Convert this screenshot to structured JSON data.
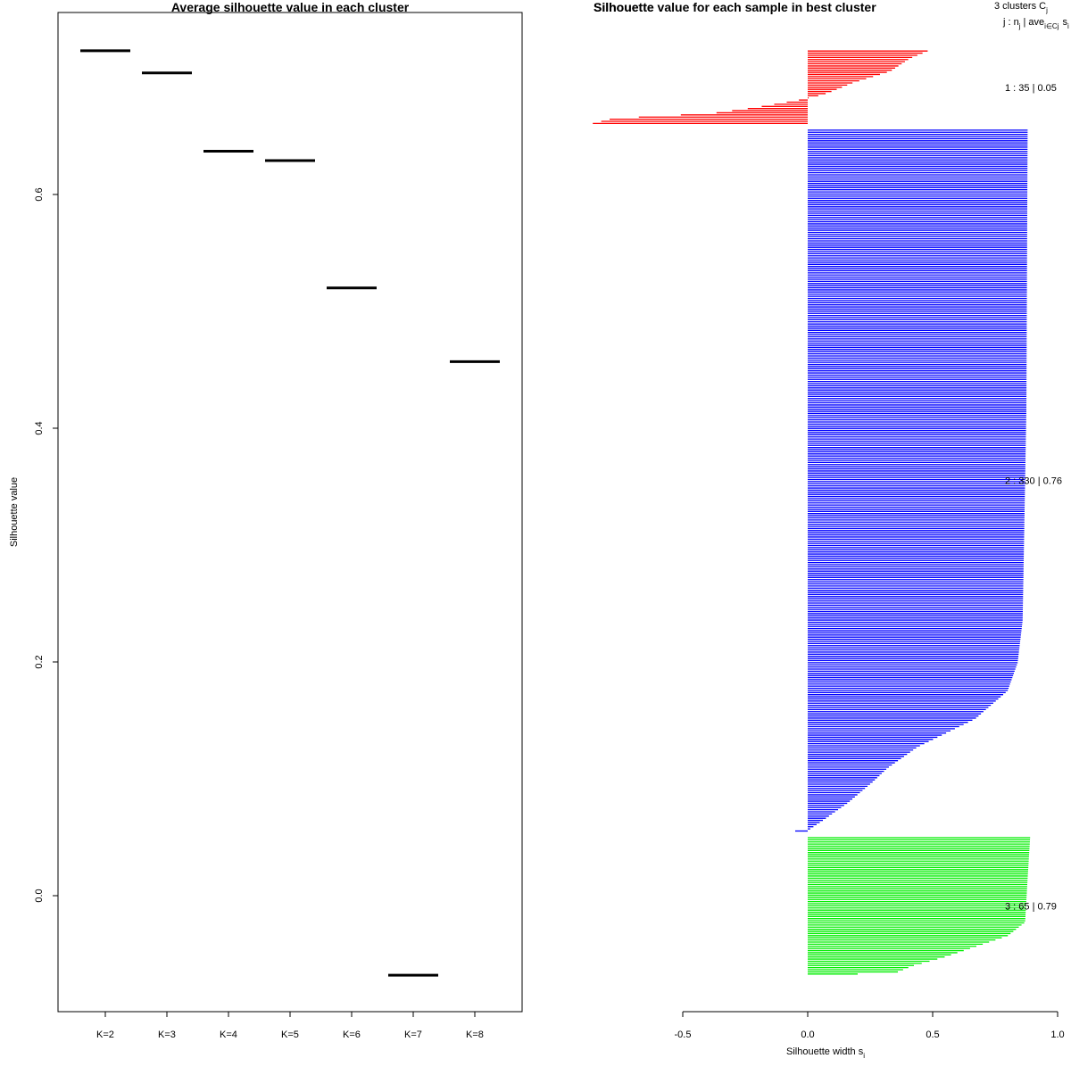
{
  "chart_data": [
    {
      "type": "scatter",
      "title": "Average silhouette value in each cluster",
      "xlabel": "",
      "ylabel": "Silhouette value",
      "categories": [
        "K=2",
        "K=3",
        "K=4",
        "K=5",
        "K=6",
        "K=7",
        "K=8"
      ],
      "values": [
        0.723,
        0.704,
        0.637,
        0.629,
        0.52,
        -0.068,
        0.457
      ],
      "y_ticks": [
        {
          "value": 0.0,
          "label": "0.0"
        },
        {
          "value": 0.2,
          "label": "0.2"
        },
        {
          "value": 0.4,
          "label": "0.4"
        },
        {
          "value": 0.6,
          "label": "0.6"
        }
      ],
      "ylim": [
        -0.1,
        0.75
      ],
      "marker": "horizontal-segment",
      "color": "#000000"
    },
    {
      "type": "bar",
      "orientation": "horizontal",
      "title": "Silhouette value for each sample in best cluster",
      "overlap_title": "Silhouette",
      "xlabel_main": "Silhouette width s",
      "xlabel_sub": "i",
      "xlim": [
        -0.5,
        1.0
      ],
      "x_ticks": [
        {
          "value": -0.5,
          "label": "-0.5"
        },
        {
          "value": 0.0,
          "label": "0.0"
        },
        {
          "value": 0.5,
          "label": "0.5"
        },
        {
          "value": 1.0,
          "label": "1.0"
        }
      ],
      "legend_header": {
        "line1_main": "3  clusters  C",
        "line1_sub": "j",
        "line2_j": "j :  n",
        "line2_sub_j": "j",
        "line2_ave": "| ave",
        "line2_sub_ieCj": "i∈Cj",
        "line2_s": "s",
        "line2_sub_i": "i"
      },
      "clusters": [
        {
          "id": "1",
          "n": 35,
          "avg": "0.05",
          "label": "1 :  35  |  0.05",
          "color": "#ff0000",
          "width_curve": [
            {
              "at": 0.0,
              "v": 0.48
            },
            {
              "at": 0.1,
              "v": 0.41
            },
            {
              "at": 0.28,
              "v": 0.33
            },
            {
              "at": 0.44,
              "v": 0.18
            },
            {
              "at": 0.58,
              "v": 0.08
            },
            {
              "at": 0.62,
              "v": 0.04
            },
            {
              "at": 0.68,
              "v": -0.04
            },
            {
              "at": 0.78,
              "v": -0.21
            },
            {
              "at": 0.86,
              "v": -0.38
            },
            {
              "at": 0.93,
              "v": -0.78
            },
            {
              "at": 1.0,
              "v": -0.86
            }
          ]
        },
        {
          "id": "2",
          "n": 330,
          "avg": "0.76",
          "label": "2 :  330  |  0.76",
          "color": "#0000ff",
          "width_curve": [
            {
              "at": 0.0,
              "v": 0.88
            },
            {
              "at": 0.4,
              "v": 0.875
            },
            {
              "at": 0.7,
              "v": 0.86
            },
            {
              "at": 0.76,
              "v": 0.84
            },
            {
              "at": 0.8,
              "v": 0.8
            },
            {
              "at": 0.84,
              "v": 0.67
            },
            {
              "at": 0.88,
              "v": 0.44
            },
            {
              "at": 0.91,
              "v": 0.32
            },
            {
              "at": 0.93,
              "v": 0.26
            },
            {
              "at": 0.96,
              "v": 0.16
            },
            {
              "at": 0.985,
              "v": 0.06
            },
            {
              "at": 0.997,
              "v": 0.01
            },
            {
              "at": 1.0,
              "v": -0.05
            }
          ]
        },
        {
          "id": "3",
          "n": 65,
          "avg": "0.79",
          "label": "3 :  65  |  0.79",
          "color": "#00ee00",
          "width_curve": [
            {
              "at": 0.0,
              "v": 0.89
            },
            {
              "at": 0.3,
              "v": 0.88
            },
            {
              "at": 0.62,
              "v": 0.87
            },
            {
              "at": 0.72,
              "v": 0.8
            },
            {
              "at": 0.8,
              "v": 0.67
            },
            {
              "at": 0.88,
              "v": 0.54
            },
            {
              "at": 0.94,
              "v": 0.42
            },
            {
              "at": 0.985,
              "v": 0.36
            },
            {
              "at": 1.0,
              "v": 0.2
            }
          ]
        }
      ]
    }
  ]
}
